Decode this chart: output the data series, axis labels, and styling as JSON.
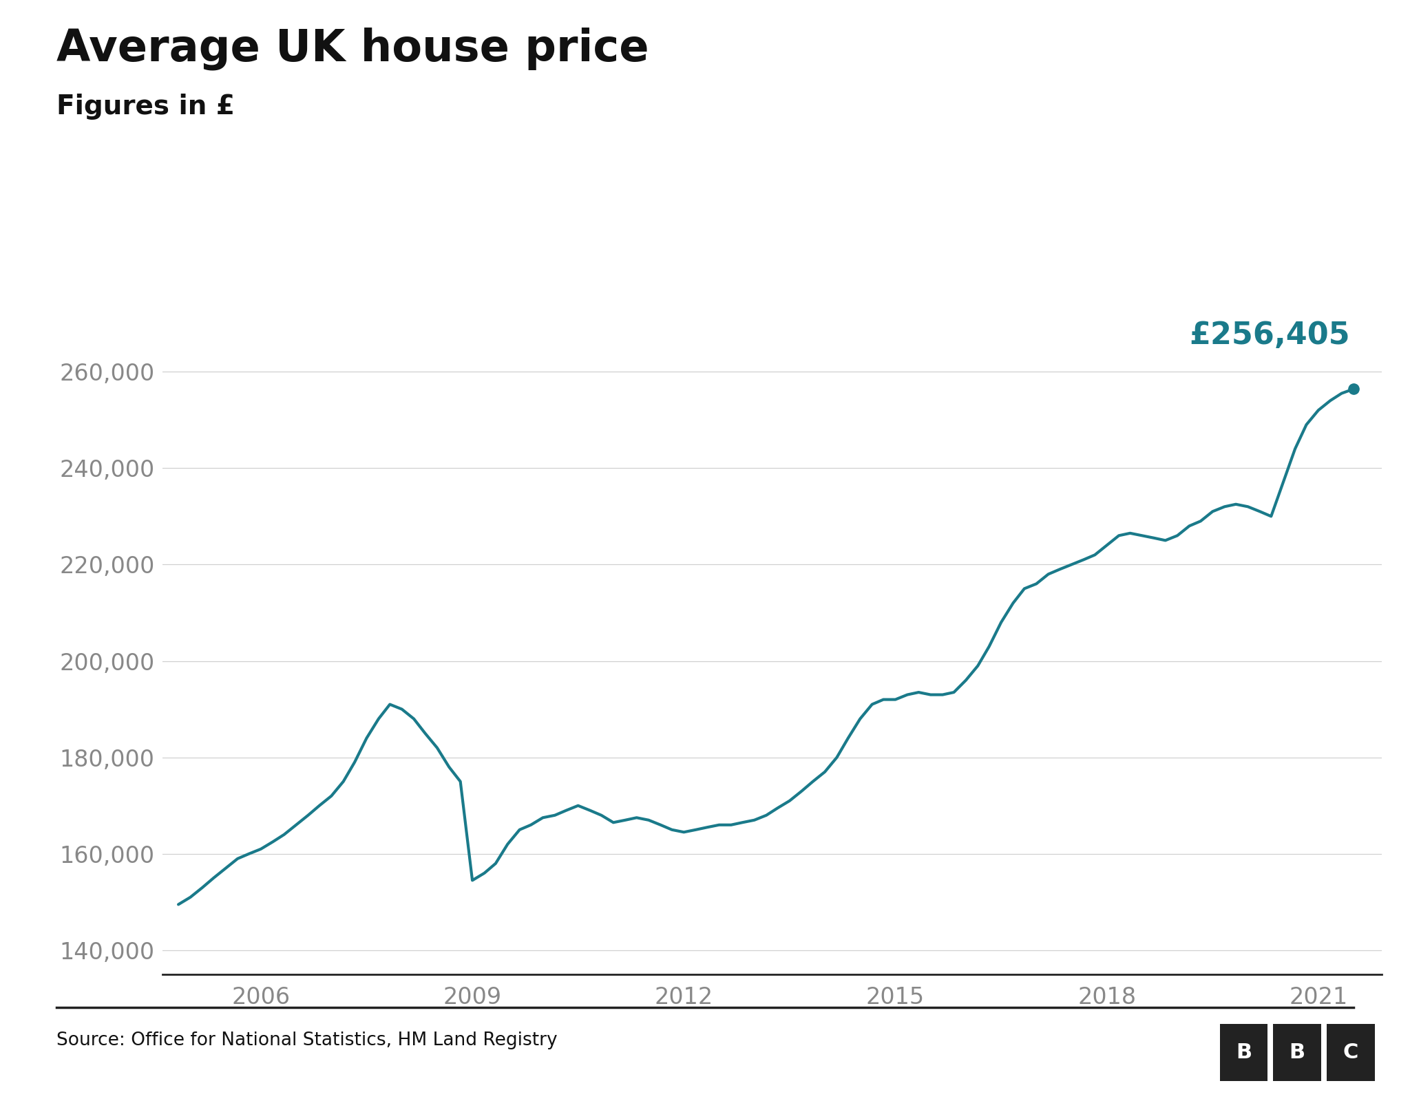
{
  "title": "Average UK house price",
  "subtitle": "Figures in £",
  "source": "Source: Office for National Statistics, HM Land Registry",
  "line_color": "#1a7a8a",
  "annotation_color": "#1a7a8a",
  "annotation_text": "£256,405",
  "background_color": "#ffffff",
  "yticks": [
    140000,
    160000,
    180000,
    200000,
    220000,
    240000,
    260000
  ],
  "xticks": [
    2006,
    2009,
    2012,
    2015,
    2018,
    2021
  ],
  "ylim": [
    135000,
    272000
  ],
  "xlim_start": 2004.6,
  "xlim_end": 2021.9,
  "data": {
    "x": [
      2004.83,
      2005.0,
      2005.17,
      2005.33,
      2005.5,
      2005.67,
      2005.83,
      2006.0,
      2006.17,
      2006.33,
      2006.5,
      2006.67,
      2006.83,
      2007.0,
      2007.17,
      2007.33,
      2007.5,
      2007.67,
      2007.83,
      2008.0,
      2008.17,
      2008.33,
      2008.5,
      2008.67,
      2008.83,
      2009.0,
      2009.17,
      2009.33,
      2009.5,
      2009.67,
      2009.83,
      2010.0,
      2010.17,
      2010.33,
      2010.5,
      2010.67,
      2010.83,
      2011.0,
      2011.17,
      2011.33,
      2011.5,
      2011.67,
      2011.83,
      2012.0,
      2012.17,
      2012.33,
      2012.5,
      2012.67,
      2012.83,
      2013.0,
      2013.17,
      2013.33,
      2013.5,
      2013.67,
      2013.83,
      2014.0,
      2014.17,
      2014.33,
      2014.5,
      2014.67,
      2014.83,
      2015.0,
      2015.17,
      2015.33,
      2015.5,
      2015.67,
      2015.83,
      2016.0,
      2016.17,
      2016.33,
      2016.5,
      2016.67,
      2016.83,
      2017.0,
      2017.17,
      2017.33,
      2017.5,
      2017.67,
      2017.83,
      2018.0,
      2018.17,
      2018.33,
      2018.5,
      2018.67,
      2018.83,
      2019.0,
      2019.17,
      2019.33,
      2019.5,
      2019.67,
      2019.83,
      2020.0,
      2020.17,
      2020.33,
      2020.5,
      2020.67,
      2020.83,
      2021.0,
      2021.17,
      2021.33,
      2021.5
    ],
    "y": [
      149500,
      151000,
      153000,
      155000,
      157000,
      159000,
      160000,
      161000,
      162500,
      164000,
      166000,
      168000,
      170000,
      172000,
      175000,
      179000,
      184000,
      188000,
      191000,
      190000,
      188000,
      185000,
      182000,
      178000,
      175000,
      154500,
      156000,
      158000,
      162000,
      165000,
      166000,
      167500,
      168000,
      169000,
      170000,
      169000,
      168000,
      166500,
      167000,
      167500,
      167000,
      166000,
      165000,
      164500,
      165000,
      165500,
      166000,
      166000,
      166500,
      167000,
      168000,
      169500,
      171000,
      173000,
      175000,
      177000,
      180000,
      184000,
      188000,
      191000,
      192000,
      192000,
      193000,
      193500,
      193000,
      193000,
      193500,
      196000,
      199000,
      203000,
      208000,
      212000,
      215000,
      216000,
      218000,
      219000,
      220000,
      221000,
      222000,
      224000,
      226000,
      226500,
      226000,
      225500,
      225000,
      226000,
      228000,
      229000,
      231000,
      232000,
      232500,
      232000,
      231000,
      230000,
      237000,
      244000,
      249000,
      252000,
      254000,
      255500,
      256405
    ]
  }
}
